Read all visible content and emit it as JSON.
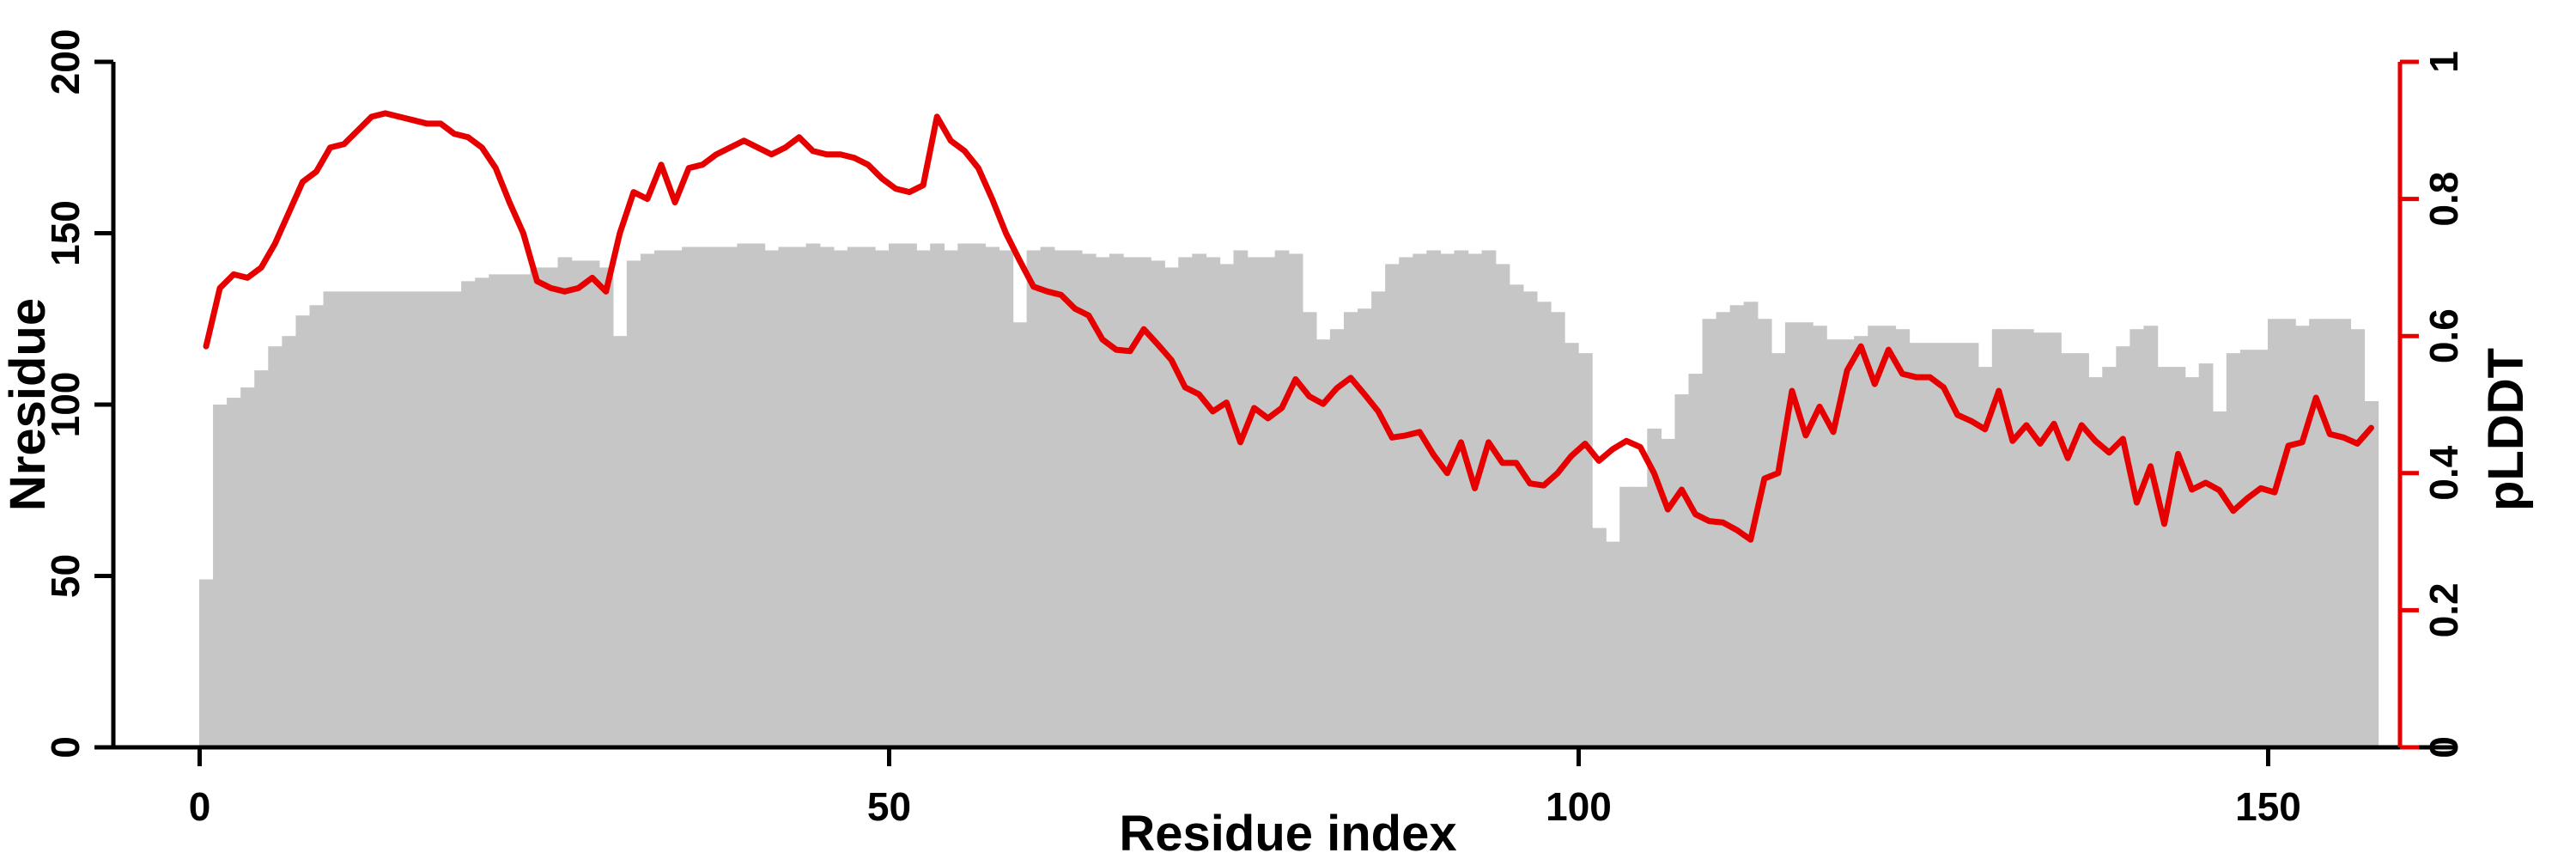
{
  "chart_data": {
    "type": "bar+line",
    "title": "",
    "x_label": "Residue index",
    "x_ticks": [
      0,
      50,
      100,
      150
    ],
    "xlim": [
      0,
      158
    ],
    "left_axis": {
      "label": "Nresidue",
      "ticks": [
        0,
        50,
        100,
        150,
        200
      ],
      "range": [
        0,
        200
      ],
      "color": "#000000"
    },
    "right_axis": {
      "label": "pLDDT",
      "ticks": [
        "0",
        "0.2",
        "0.4",
        "0.6",
        "0.8",
        "1"
      ],
      "tick_values": [
        0,
        0.2,
        0.4,
        0.6,
        0.8,
        1
      ],
      "range": [
        0,
        1
      ],
      "color": "#e60000"
    },
    "legend": "none",
    "grid": false,
    "n_residues": 158,
    "series": [
      {
        "name": "Nresidue",
        "type": "bar",
        "color": "#c6c6c6",
        "values": [
          49,
          100,
          102,
          105,
          110,
          117,
          120,
          126,
          129,
          133,
          133,
          133,
          133,
          133,
          133,
          133,
          133,
          133,
          133,
          136,
          137,
          138,
          138,
          138,
          140,
          140,
          143,
          142,
          142,
          140,
          120,
          142,
          144,
          145,
          145,
          146,
          146,
          146,
          146,
          147,
          147,
          145,
          146,
          146,
          147,
          146,
          145,
          146,
          146,
          145,
          147,
          147,
          145,
          147,
          145,
          147,
          147,
          146,
          145,
          124,
          145,
          146,
          145,
          145,
          144,
          143,
          144,
          143,
          143,
          142,
          140,
          143,
          144,
          143,
          141,
          145,
          143,
          143,
          145,
          144,
          127,
          119,
          122,
          127,
          128,
          133,
          141,
          143,
          144,
          145,
          144,
          145,
          144,
          145,
          141,
          135,
          133,
          130,
          127,
          118,
          115,
          64,
          60,
          76,
          76,
          93,
          90,
          103,
          109,
          125,
          127,
          129,
          130,
          125,
          115,
          124,
          124,
          123,
          119,
          119,
          120,
          123,
          123,
          122,
          118,
          118,
          118,
          118,
          118,
          111,
          122,
          122,
          122,
          121,
          121,
          115,
          115,
          108,
          111,
          117,
          122,
          123,
          111,
          111,
          108,
          112,
          98,
          115,
          116,
          116,
          125,
          125,
          123,
          125,
          125,
          125,
          122,
          101
        ]
      },
      {
        "name": "pLDDT",
        "type": "line",
        "color": "#e60000",
        "values": [
          0.585,
          0.67,
          0.69,
          0.685,
          0.7,
          0.735,
          0.78,
          0.825,
          0.84,
          0.875,
          0.88,
          0.9,
          0.92,
          0.925,
          0.92,
          0.915,
          0.91,
          0.91,
          0.895,
          0.89,
          0.875,
          0.845,
          0.795,
          0.75,
          0.68,
          0.67,
          0.665,
          0.67,
          0.685,
          0.665,
          0.75,
          0.81,
          0.8,
          0.85,
          0.795,
          0.845,
          0.85,
          0.865,
          0.875,
          0.885,
          0.875,
          0.865,
          0.875,
          0.89,
          0.87,
          0.865,
          0.865,
          0.86,
          0.85,
          0.83,
          0.815,
          0.81,
          0.82,
          0.92,
          0.885,
          0.87,
          0.845,
          0.8,
          0.75,
          0.71,
          0.672,
          0.665,
          0.66,
          0.64,
          0.63,
          0.595,
          0.58,
          0.578,
          0.61,
          0.588,
          0.565,
          0.525,
          0.515,
          0.49,
          0.503,
          0.445,
          0.495,
          0.48,
          0.495,
          0.537,
          0.512,
          0.501,
          0.524,
          0.539,
          0.515,
          0.49,
          0.452,
          0.455,
          0.46,
          0.427,
          0.4,
          0.445,
          0.378,
          0.445,
          0.415,
          0.415,
          0.385,
          0.382,
          0.4,
          0.425,
          0.443,
          0.418,
          0.435,
          0.447,
          0.438,
          0.4,
          0.347,
          0.376,
          0.34,
          0.33,
          0.328,
          0.317,
          0.303,
          0.392,
          0.4,
          0.52,
          0.455,
          0.497,
          0.46,
          0.55,
          0.585,
          0.53,
          0.58,
          0.545,
          0.54,
          0.54,
          0.525,
          0.485,
          0.476,
          0.464,
          0.52,
          0.447,
          0.47,
          0.443,
          0.472,
          0.422,
          0.47,
          0.447,
          0.43,
          0.45,
          0.357,
          0.41,
          0.326,
          0.428,
          0.376,
          0.386,
          0.375,
          0.345,
          0.363,
          0.378,
          0.372,
          0.44,
          0.445,
          0.51,
          0.457,
          0.452,
          0.443,
          0.466
        ]
      }
    ]
  },
  "colors": {
    "background": "#ffffff",
    "bar_fill": "#c6c6c6",
    "line_stroke": "#e60000",
    "axis_black": "#000000",
    "axis_red": "#e60000"
  }
}
